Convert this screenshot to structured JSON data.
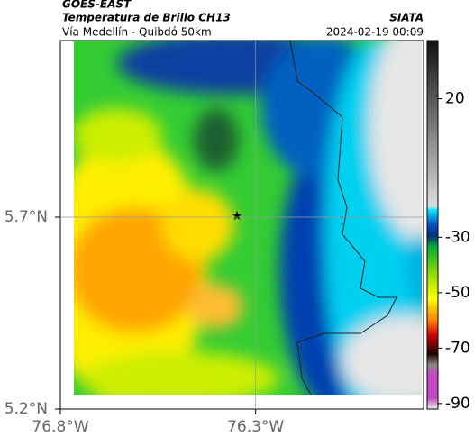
{
  "header": {
    "product": "GOES-EAST",
    "title": "Temperatura de Brillo CH13",
    "source": "SIATA",
    "subtitle": "Vía Medellín - Quibdó 50km",
    "timestamp": "2024-02-19 00:09"
  },
  "map": {
    "latlim": [
      5.2,
      6.16
    ],
    "lonlim": [
      -76.8,
      -75.87
    ],
    "latticks": [
      {
        "value": 5.7,
        "label": "5.7°N"
      },
      {
        "value": 5.2,
        "label": "5.2°N"
      }
    ],
    "lonticks": [
      {
        "value": -76.8,
        "label": "76.8°W"
      },
      {
        "value": -76.3,
        "label": "76.3°W"
      }
    ]
  },
  "colorbar": {
    "lim": [
      41,
      -92
    ],
    "ticks": [
      20,
      -30,
      -50,
      -70,
      -90
    ]
  }
}
